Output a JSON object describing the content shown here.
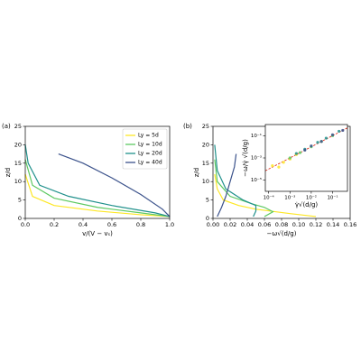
{
  "chart_data": [
    {
      "type": "line",
      "panel_label": "(a)",
      "x_label": "v/(V − vₛ)",
      "y_label": "z/d",
      "xlim": [
        0,
        1
      ],
      "ylim": [
        0,
        25
      ],
      "xticks": [
        {
          "value": 0,
          "label": "0.0"
        },
        {
          "value": 0.2,
          "label": "0.2"
        },
        {
          "value": 0.4,
          "label": "0.4"
        },
        {
          "value": 0.6,
          "label": "0.6"
        },
        {
          "value": 0.8,
          "label": "0.8"
        },
        {
          "value": 1,
          "label": "1.0"
        }
      ],
      "yticks": [
        0,
        5,
        10,
        15,
        20,
        25
      ],
      "legend": "upper right",
      "series": [
        {
          "name": "Ly = 5d",
          "color": "#fde725",
          "x": [
            0,
            0.05,
            0.2,
            0.5,
            0.8,
            1
          ],
          "values": [
            12,
            6,
            3.5,
            2,
            1,
            0.5
          ]
        },
        {
          "name": "Ly = 10d",
          "color": "#5ec962",
          "x": [
            0,
            0.05,
            0.2,
            0.5,
            0.8,
            1
          ],
          "values": [
            16,
            9,
            5.5,
            3,
            1.5,
            0.5
          ]
        },
        {
          "name": "Ly = 20d",
          "color": "#21918c",
          "x": [
            0,
            0.02,
            0.1,
            0.3,
            0.6,
            0.9,
            1
          ],
          "values": [
            20,
            15,
            9,
            6,
            3.5,
            1.5,
            0.5
          ]
        },
        {
          "name": "Ly = 40d",
          "color": "#3b528b",
          "x": [
            0.23,
            0.4,
            0.6,
            0.8,
            0.95,
            1
          ],
          "values": [
            17.5,
            15,
            11,
            6.5,
            2.5,
            0.5
          ]
        }
      ]
    },
    {
      "type": "line",
      "panel_label": "(b)",
      "x_label": "−ω√(d/g)",
      "y_label": "z/d",
      "xlim": [
        0,
        0.16
      ],
      "ylim": [
        0,
        25
      ],
      "xticks": [
        {
          "value": 0,
          "label": "0.00"
        },
        {
          "value": 0.02,
          "label": "0.02"
        },
        {
          "value": 0.04,
          "label": "0.04"
        },
        {
          "value": 0.06,
          "label": "0.06"
        },
        {
          "value": 0.08,
          "label": "0.08"
        },
        {
          "value": 0.1,
          "label": "0.10"
        },
        {
          "value": 0.12,
          "label": "0.12"
        },
        {
          "value": 0.14,
          "label": "0.14"
        },
        {
          "value": 0.16,
          "label": "0.16"
        }
      ],
      "yticks": [
        0,
        5,
        10,
        15,
        20,
        25
      ],
      "series": [
        {
          "color": "#fde725",
          "x": [
            0.002,
            0.005,
            0.012,
            0.03,
            0.05,
            0.09,
            0.12
          ],
          "values": [
            12,
            8,
            5,
            3.5,
            2.5,
            1.3,
            0.5
          ]
        },
        {
          "color": "#5ec962",
          "x": [
            0.002,
            0.005,
            0.02,
            0.045,
            0.06,
            0.07,
            0.06
          ],
          "values": [
            16,
            10,
            6,
            4,
            3,
            1.8,
            0.5
          ]
        },
        {
          "color": "#21918c",
          "x": [
            0.002,
            0.005,
            0.015,
            0.035,
            0.05,
            0.05,
            0.047
          ],
          "values": [
            20,
            13,
            8,
            5,
            3.5,
            2,
            0.5
          ]
        },
        {
          "color": "#3b528b",
          "x": [
            0.027,
            0.025,
            0.02,
            0.015,
            0.01,
            0.005
          ],
          "values": [
            17.5,
            14,
            10,
            6,
            3,
            0.5
          ]
        }
      ]
    },
    {
      "type": "scatter",
      "x_label": "γ̇√(d/g)",
      "y_label": "−ω/γ̇ √(d/g)",
      "xlog": true,
      "ylog": true,
      "xlim": [
        7e-05,
        0.5
      ],
      "ylim": [
        1e-06,
        1
      ],
      "xticks": [
        {
          "value": 0.0001,
          "label": "10⁻⁴"
        },
        {
          "value": 0.001,
          "label": "10⁻³"
        },
        {
          "value": 0.01,
          "label": "10⁻²"
        },
        {
          "value": 0.1,
          "label": "10⁻¹"
        }
      ],
      "yticks": [
        {
          "value": 1e-05,
          "label": "10⁻⁵"
        },
        {
          "value": 0.001,
          "label": "10⁻³"
        },
        {
          "value": 0.1,
          "label": "10⁻¹"
        }
      ],
      "series": [
        {
          "color": "#fde725",
          "x": [
            0.00015,
            0.0003,
            0.0005,
            0.001,
            0.002
          ],
          "values": [
            0.0002,
            0.00015,
            0.0004,
            0.0008,
            0.002
          ]
        },
        {
          "color": "#5ec962",
          "x": [
            0.001,
            0.003,
            0.01,
            0.03,
            0.1
          ],
          "values": [
            0.001,
            0.003,
            0.01,
            0.03,
            0.1
          ]
        },
        {
          "color": "#21918c",
          "x": [
            0.002,
            0.005,
            0.02,
            0.05,
            0.2
          ],
          "values": [
            0.0025,
            0.006,
            0.025,
            0.06,
            0.25
          ]
        },
        {
          "color": "#3b528b",
          "x": [
            0.005,
            0.01,
            0.03,
            0.1,
            0.3
          ],
          "values": [
            0.005,
            0.012,
            0.03,
            0.12,
            0.3
          ]
        }
      ]
    }
  ]
}
